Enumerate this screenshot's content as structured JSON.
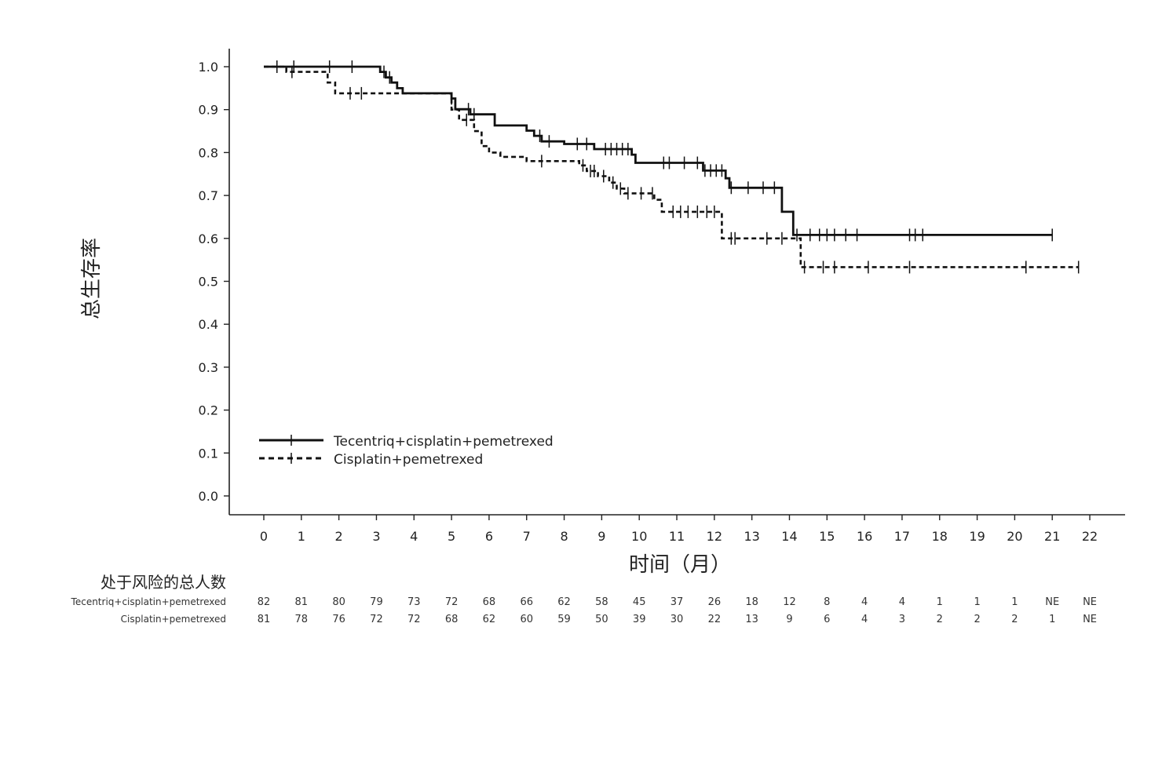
{
  "chart_data": {
    "type": "line",
    "title": "",
    "xlabel": "时间（月）",
    "ylabel": "总生存率",
    "xlim": [
      0,
      22
    ],
    "ylim": [
      0,
      1.0
    ],
    "x_ticks": [
      0,
      1,
      2,
      3,
      4,
      5,
      6,
      7,
      8,
      9,
      10,
      11,
      12,
      13,
      14,
      15,
      16,
      17,
      18,
      19,
      20,
      21,
      22
    ],
    "y_ticks": [
      "0.0",
      "0.1",
      "0.2",
      "0.3",
      "0.4",
      "0.5",
      "0.6",
      "0.7",
      "0.8",
      "0.9",
      "1.0"
    ],
    "grid": false,
    "legend_position": "lower-left",
    "series": [
      {
        "name": "Tecentriq+cisplatin+pemetrexed",
        "line_style": "solid",
        "color": "#111111",
        "steps": [
          [
            0,
            1.0
          ],
          [
            3.1,
            0.988
          ],
          [
            3.25,
            0.975
          ],
          [
            3.4,
            0.963
          ],
          [
            3.55,
            0.95
          ],
          [
            3.7,
            0.938
          ],
          [
            5.0,
            0.926
          ],
          [
            5.1,
            0.901
          ],
          [
            5.5,
            0.889
          ],
          [
            6.15,
            0.863
          ],
          [
            7.0,
            0.851
          ],
          [
            7.2,
            0.839
          ],
          [
            7.4,
            0.826
          ],
          [
            8.0,
            0.82
          ],
          [
            8.8,
            0.808
          ],
          [
            9.8,
            0.795
          ],
          [
            9.9,
            0.776
          ],
          [
            11.7,
            0.758
          ],
          [
            12.3,
            0.74
          ],
          [
            12.4,
            0.718
          ],
          [
            13.8,
            0.662
          ],
          [
            14.1,
            0.608
          ],
          [
            21.0,
            0.608
          ]
        ],
        "censor": [
          [
            0.35,
            1.0
          ],
          [
            0.8,
            1.0
          ],
          [
            1.75,
            1.0
          ],
          [
            2.35,
            1.0
          ],
          [
            3.2,
            0.988
          ],
          [
            3.35,
            0.975
          ],
          [
            5.0,
            0.926
          ],
          [
            5.45,
            0.901
          ],
          [
            5.6,
            0.889
          ],
          [
            7.35,
            0.839
          ],
          [
            7.6,
            0.826
          ],
          [
            8.35,
            0.82
          ],
          [
            8.6,
            0.82
          ],
          [
            9.1,
            0.808
          ],
          [
            9.25,
            0.808
          ],
          [
            9.4,
            0.808
          ],
          [
            9.55,
            0.808
          ],
          [
            9.7,
            0.808
          ],
          [
            10.65,
            0.776
          ],
          [
            10.8,
            0.776
          ],
          [
            11.2,
            0.776
          ],
          [
            11.55,
            0.776
          ],
          [
            11.75,
            0.758
          ],
          [
            11.9,
            0.758
          ],
          [
            12.05,
            0.758
          ],
          [
            12.2,
            0.758
          ],
          [
            12.45,
            0.718
          ],
          [
            12.9,
            0.718
          ],
          [
            13.3,
            0.718
          ],
          [
            13.6,
            0.718
          ],
          [
            14.2,
            0.608
          ],
          [
            14.55,
            0.608
          ],
          [
            14.8,
            0.608
          ],
          [
            15.0,
            0.608
          ],
          [
            15.2,
            0.608
          ],
          [
            15.5,
            0.608
          ],
          [
            15.8,
            0.608
          ],
          [
            17.2,
            0.608
          ],
          [
            17.35,
            0.608
          ],
          [
            17.55,
            0.608
          ],
          [
            21.0,
            0.608
          ]
        ]
      },
      {
        "name": "Cisplatin+pemetrexed",
        "line_style": "dashed",
        "color": "#111111",
        "steps": [
          [
            0,
            1.0
          ],
          [
            0.6,
            0.988
          ],
          [
            1.7,
            0.963
          ],
          [
            1.9,
            0.938
          ],
          [
            5.0,
            0.9
          ],
          [
            5.2,
            0.876
          ],
          [
            5.6,
            0.85
          ],
          [
            5.8,
            0.815
          ],
          [
            6.0,
            0.8
          ],
          [
            6.3,
            0.79
          ],
          [
            7.0,
            0.78
          ],
          [
            8.4,
            0.77
          ],
          [
            8.6,
            0.757
          ],
          [
            8.9,
            0.745
          ],
          [
            9.2,
            0.73
          ],
          [
            9.4,
            0.716
          ],
          [
            9.6,
            0.705
          ],
          [
            10.4,
            0.69
          ],
          [
            10.6,
            0.662
          ],
          [
            12.2,
            0.6
          ],
          [
            14.3,
            0.533
          ],
          [
            21.7,
            0.533
          ]
        ],
        "censor": [
          [
            0.75,
            0.988
          ],
          [
            2.3,
            0.938
          ],
          [
            2.6,
            0.938
          ],
          [
            5.4,
            0.876
          ],
          [
            7.4,
            0.78
          ],
          [
            8.5,
            0.77
          ],
          [
            8.7,
            0.757
          ],
          [
            8.8,
            0.757
          ],
          [
            9.05,
            0.745
          ],
          [
            9.3,
            0.73
          ],
          [
            9.5,
            0.716
          ],
          [
            9.7,
            0.705
          ],
          [
            10.05,
            0.705
          ],
          [
            10.35,
            0.705
          ],
          [
            10.9,
            0.662
          ],
          [
            11.1,
            0.662
          ],
          [
            11.3,
            0.662
          ],
          [
            11.55,
            0.662
          ],
          [
            11.8,
            0.662
          ],
          [
            12.0,
            0.662
          ],
          [
            12.45,
            0.6
          ],
          [
            12.55,
            0.6
          ],
          [
            13.4,
            0.6
          ],
          [
            13.8,
            0.6
          ],
          [
            14.4,
            0.533
          ],
          [
            14.9,
            0.533
          ],
          [
            15.2,
            0.533
          ],
          [
            16.1,
            0.533
          ],
          [
            17.2,
            0.533
          ],
          [
            20.3,
            0.533
          ],
          [
            21.7,
            0.533
          ]
        ]
      }
    ],
    "risk_table": {
      "title": "处于风险的总人数",
      "rows": [
        {
          "label": "Tecentriq+cisplatin+pemetrexed",
          "values": [
            "82",
            "81",
            "80",
            "79",
            "73",
            "72",
            "68",
            "66",
            "62",
            "58",
            "45",
            "37",
            "26",
            "18",
            "12",
            "8",
            "4",
            "4",
            "1",
            "1",
            "1",
            "NE",
            "NE"
          ]
        },
        {
          "label": "Cisplatin+pemetrexed",
          "values": [
            "81",
            "78",
            "76",
            "72",
            "72",
            "68",
            "62",
            "60",
            "59",
            "50",
            "39",
            "30",
            "22",
            "13",
            "9",
            "6",
            "4",
            "3",
            "2",
            "2",
            "2",
            "1",
            "NE"
          ]
        }
      ]
    }
  }
}
